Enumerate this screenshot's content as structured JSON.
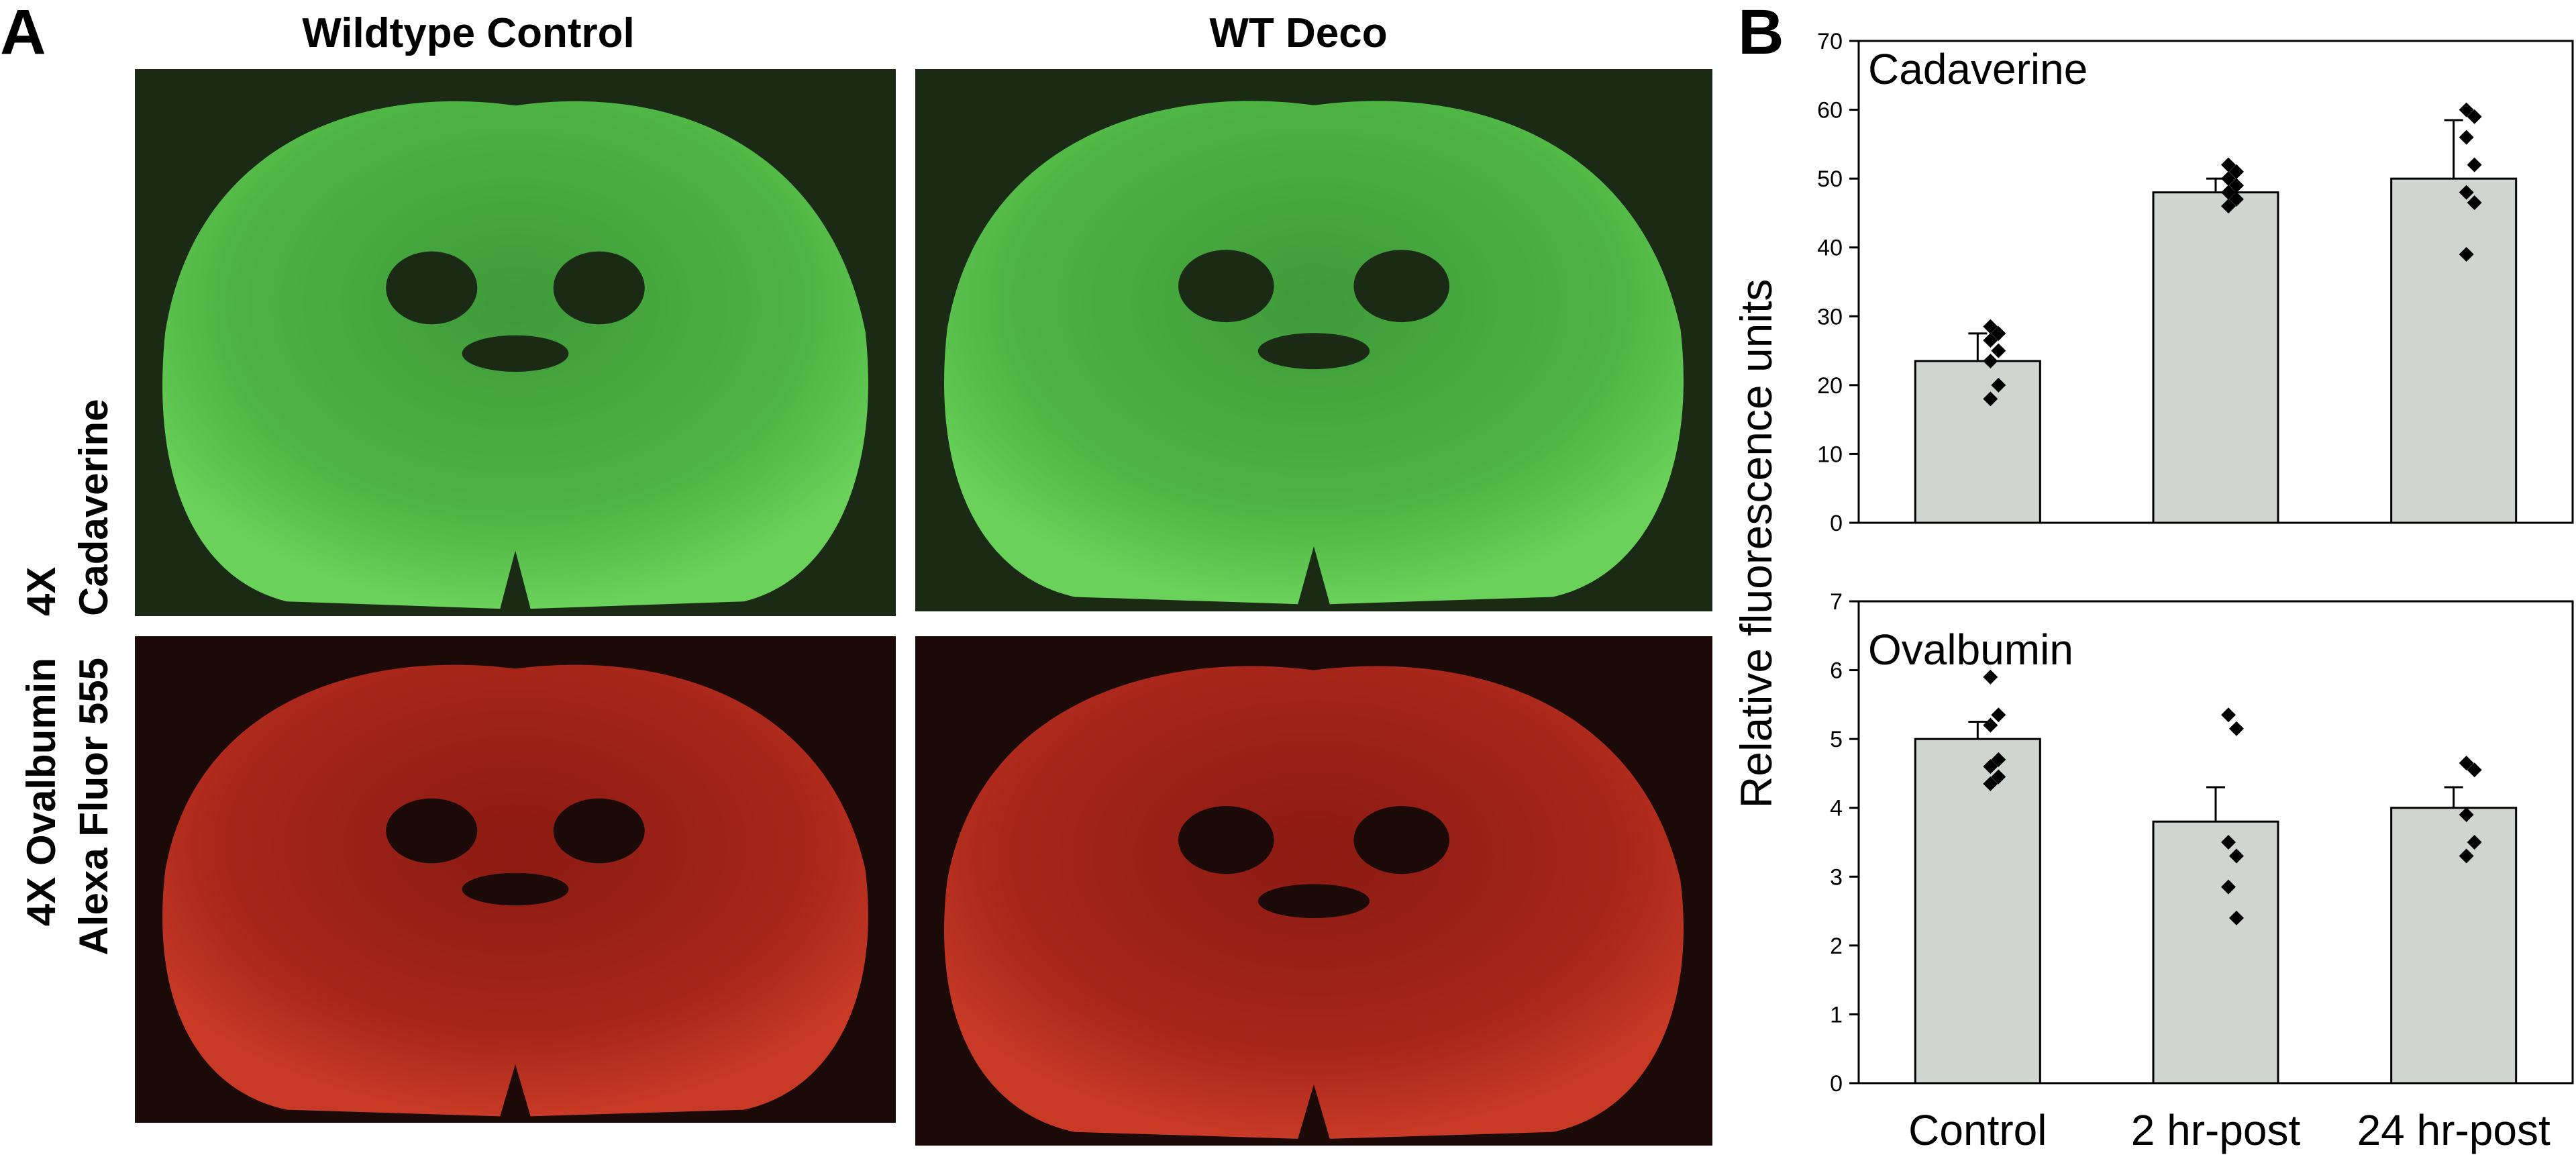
{
  "panel_a": {
    "label": "A",
    "columns": [
      "Wildtype Control",
      "WT Deco"
    ],
    "rows": [
      [
        "4X",
        "Cadaverine"
      ],
      [
        "4X Ovalbumin",
        "Alexa Fluor 555"
      ]
    ]
  },
  "panel_b": {
    "label": "B",
    "y_label": "Relative fluorescence units"
  },
  "chart_data": [
    {
      "type": "bar",
      "title": "Cadaverine",
      "categories": [
        null,
        null,
        null
      ],
      "values": [
        23.5,
        48,
        50
      ],
      "errors": [
        4,
        2,
        8.5
      ],
      "points": [
        [
          28.5,
          27.5,
          26.5,
          25,
          23.5,
          20,
          18
        ],
        [
          52,
          51,
          50,
          49,
          48,
          47,
          46
        ],
        [
          60,
          59,
          56,
          52,
          48,
          46.5,
          39
        ]
      ],
      "color": "#d0d5d2",
      "ylim": [
        0,
        70
      ],
      "yticks": [
        0,
        10,
        20,
        30,
        40,
        50,
        60,
        70
      ]
    },
    {
      "type": "bar",
      "title": "Ovalbumin",
      "categories": [
        "Control",
        "2 hr-post",
        "24 hr-post"
      ],
      "values": [
        5.0,
        3.8,
        4.0
      ],
      "errors": [
        0.25,
        0.5,
        0.3
      ],
      "points": [
        [
          5.9,
          5.35,
          5.2,
          4.7,
          4.6,
          4.45,
          4.35
        ],
        [
          5.35,
          5.15,
          3.5,
          3.3,
          2.85,
          2.4
        ],
        [
          4.65,
          4.55,
          3.9,
          3.5,
          3.3
        ]
      ],
      "color": "#d0d5d2",
      "ylim": [
        0,
        7
      ],
      "yticks": [
        0,
        1,
        2,
        3,
        4,
        5,
        6,
        7
      ]
    }
  ]
}
